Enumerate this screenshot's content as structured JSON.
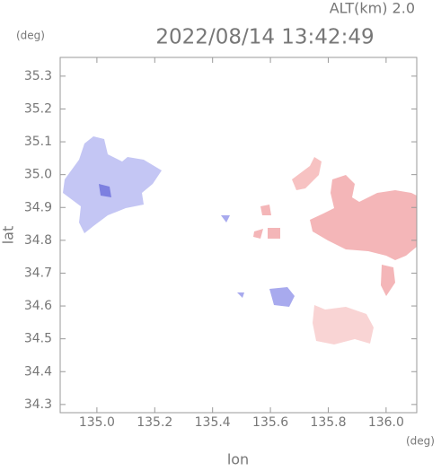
{
  "chart_data": {
    "type": "map",
    "title": "2022/08/14 13:42:49",
    "subtitle": "ALT(km) 2.0",
    "y_unit": "(deg)",
    "x_unit": "(deg)",
    "xlabel": "lon",
    "ylabel": "lat",
    "xlim": [
      134.873,
      136.106
    ],
    "ylim": [
      34.275,
      35.357
    ],
    "xticks": [
      {
        "value": 135.0,
        "label": "135.0"
      },
      135.2,
      135.4,
      135.6,
      135.8,
      {
        "value": 136.0,
        "label": "136.0"
      }
    ],
    "yticks": [
      34.3,
      34.4,
      34.5,
      34.6,
      34.7,
      34.8,
      34.9,
      {
        "value": 35.0,
        "label": "35.0"
      },
      35.1,
      35.2,
      35.3
    ]
  }
}
